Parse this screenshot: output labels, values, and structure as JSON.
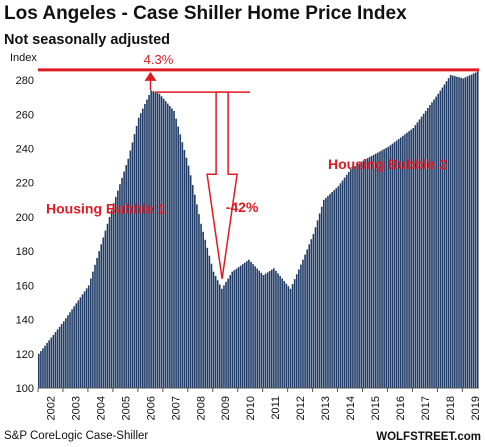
{
  "title": "Los Angeles - Case Shiller Home Price Index",
  "subtitle": "Not seasonally adjusted",
  "source": "S&P CoreLogic Case-Shiller",
  "brand": "WOLFSTREET.com",
  "chart_data": {
    "type": "bar",
    "ylabel": "Index",
    "ylim": [
      100,
      290
    ],
    "yticks": [
      100,
      120,
      140,
      160,
      180,
      200,
      220,
      240,
      260,
      280
    ],
    "xticks": [
      "2002",
      "2003",
      "2004",
      "2005",
      "2006",
      "2007",
      "2008",
      "2009",
      "2010",
      "2011",
      "2012",
      "2013",
      "2014",
      "2015",
      "2016",
      "2017",
      "2018",
      "2019"
    ],
    "x_start": "2002-01",
    "x_end": "2019-08",
    "grid": false,
    "bar_color": "#1f3b66",
    "anchors": [
      {
        "date": "2002-01",
        "value": 120
      },
      {
        "date": "2003-01",
        "value": 139
      },
      {
        "date": "2004-01",
        "value": 160
      },
      {
        "date": "2005-01",
        "value": 208
      },
      {
        "date": "2005-08",
        "value": 234
      },
      {
        "date": "2006-01",
        "value": 258
      },
      {
        "date": "2006-07",
        "value": 274
      },
      {
        "date": "2006-11",
        "value": 272
      },
      {
        "date": "2007-06",
        "value": 262
      },
      {
        "date": "2008-01",
        "value": 230
      },
      {
        "date": "2008-07",
        "value": 196
      },
      {
        "date": "2009-01",
        "value": 168
      },
      {
        "date": "2009-05",
        "value": 158
      },
      {
        "date": "2009-10",
        "value": 168
      },
      {
        "date": "2010-06",
        "value": 175
      },
      {
        "date": "2011-01",
        "value": 166
      },
      {
        "date": "2011-06",
        "value": 170
      },
      {
        "date": "2012-02",
        "value": 158
      },
      {
        "date": "2012-08",
        "value": 175
      },
      {
        "date": "2013-01",
        "value": 190
      },
      {
        "date": "2013-06",
        "value": 210
      },
      {
        "date": "2014-01",
        "value": 218
      },
      {
        "date": "2014-07",
        "value": 228
      },
      {
        "date": "2015-01",
        "value": 233
      },
      {
        "date": "2016-01",
        "value": 241
      },
      {
        "date": "2017-01",
        "value": 252
      },
      {
        "date": "2017-07",
        "value": 262
      },
      {
        "date": "2018-01",
        "value": 272
      },
      {
        "date": "2018-07",
        "value": 283
      },
      {
        "date": "2019-01",
        "value": 281
      },
      {
        "date": "2019-08",
        "value": 285
      }
    ],
    "reference_line": {
      "value": 286,
      "color": "#e01b24"
    },
    "annotations": [
      {
        "text": "4.3%",
        "color": "#e01b24"
      },
      {
        "text": "Housing Bubble 1",
        "color": "#e01b24"
      },
      {
        "text": "-42%",
        "color": "#e01b24"
      },
      {
        "text": "Housing Bubble 2",
        "color": "#e01b24"
      }
    ]
  }
}
